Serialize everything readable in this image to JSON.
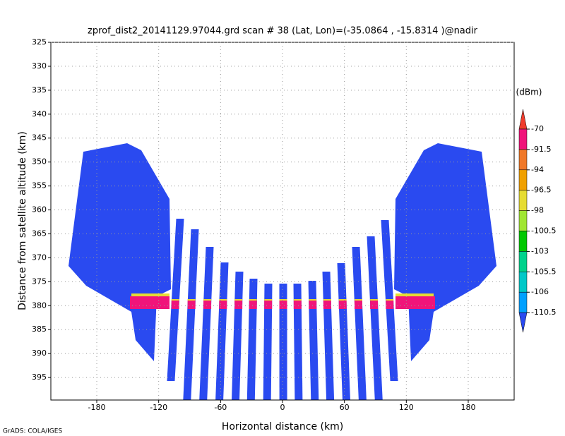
{
  "chart_data": {
    "type": "swath",
    "title": "zprof_dist2_20141129.97044.grd  scan # 38  (Lat, Lon)=(-35.0864 , -15.8314 )@nadir",
    "x_label": "Horizontal distance (km)",
    "y_label": "Distance from satellite altitude (km)",
    "footer": "GrADS: COLA/IGES",
    "xlim": [
      -224.5,
      224.5
    ],
    "xticks": [
      -180,
      -120,
      -60,
      0,
      60,
      120,
      180
    ],
    "ylim": [
      325,
      399.7
    ],
    "yticks": [
      325,
      330,
      335,
      340,
      345,
      350,
      355,
      360,
      365,
      370,
      375,
      380,
      385,
      390,
      395
    ],
    "y_inverted": true,
    "grid": true,
    "colorbar": {
      "unit": "(dBm)",
      "levels": [
        -70,
        -91.5,
        -94,
        -96.5,
        -98,
        -100.5,
        -103,
        -105.5,
        -106,
        -110.5
      ],
      "colors": [
        "#f03c2c",
        "#f0147a",
        "#f07828",
        "#f0a000",
        "#e6dc32",
        "#a0e632",
        "#00c800",
        "#00d28c",
        "#00c8c8",
        "#00a0ff",
        "#2a4af0"
      ]
    }
  }
}
